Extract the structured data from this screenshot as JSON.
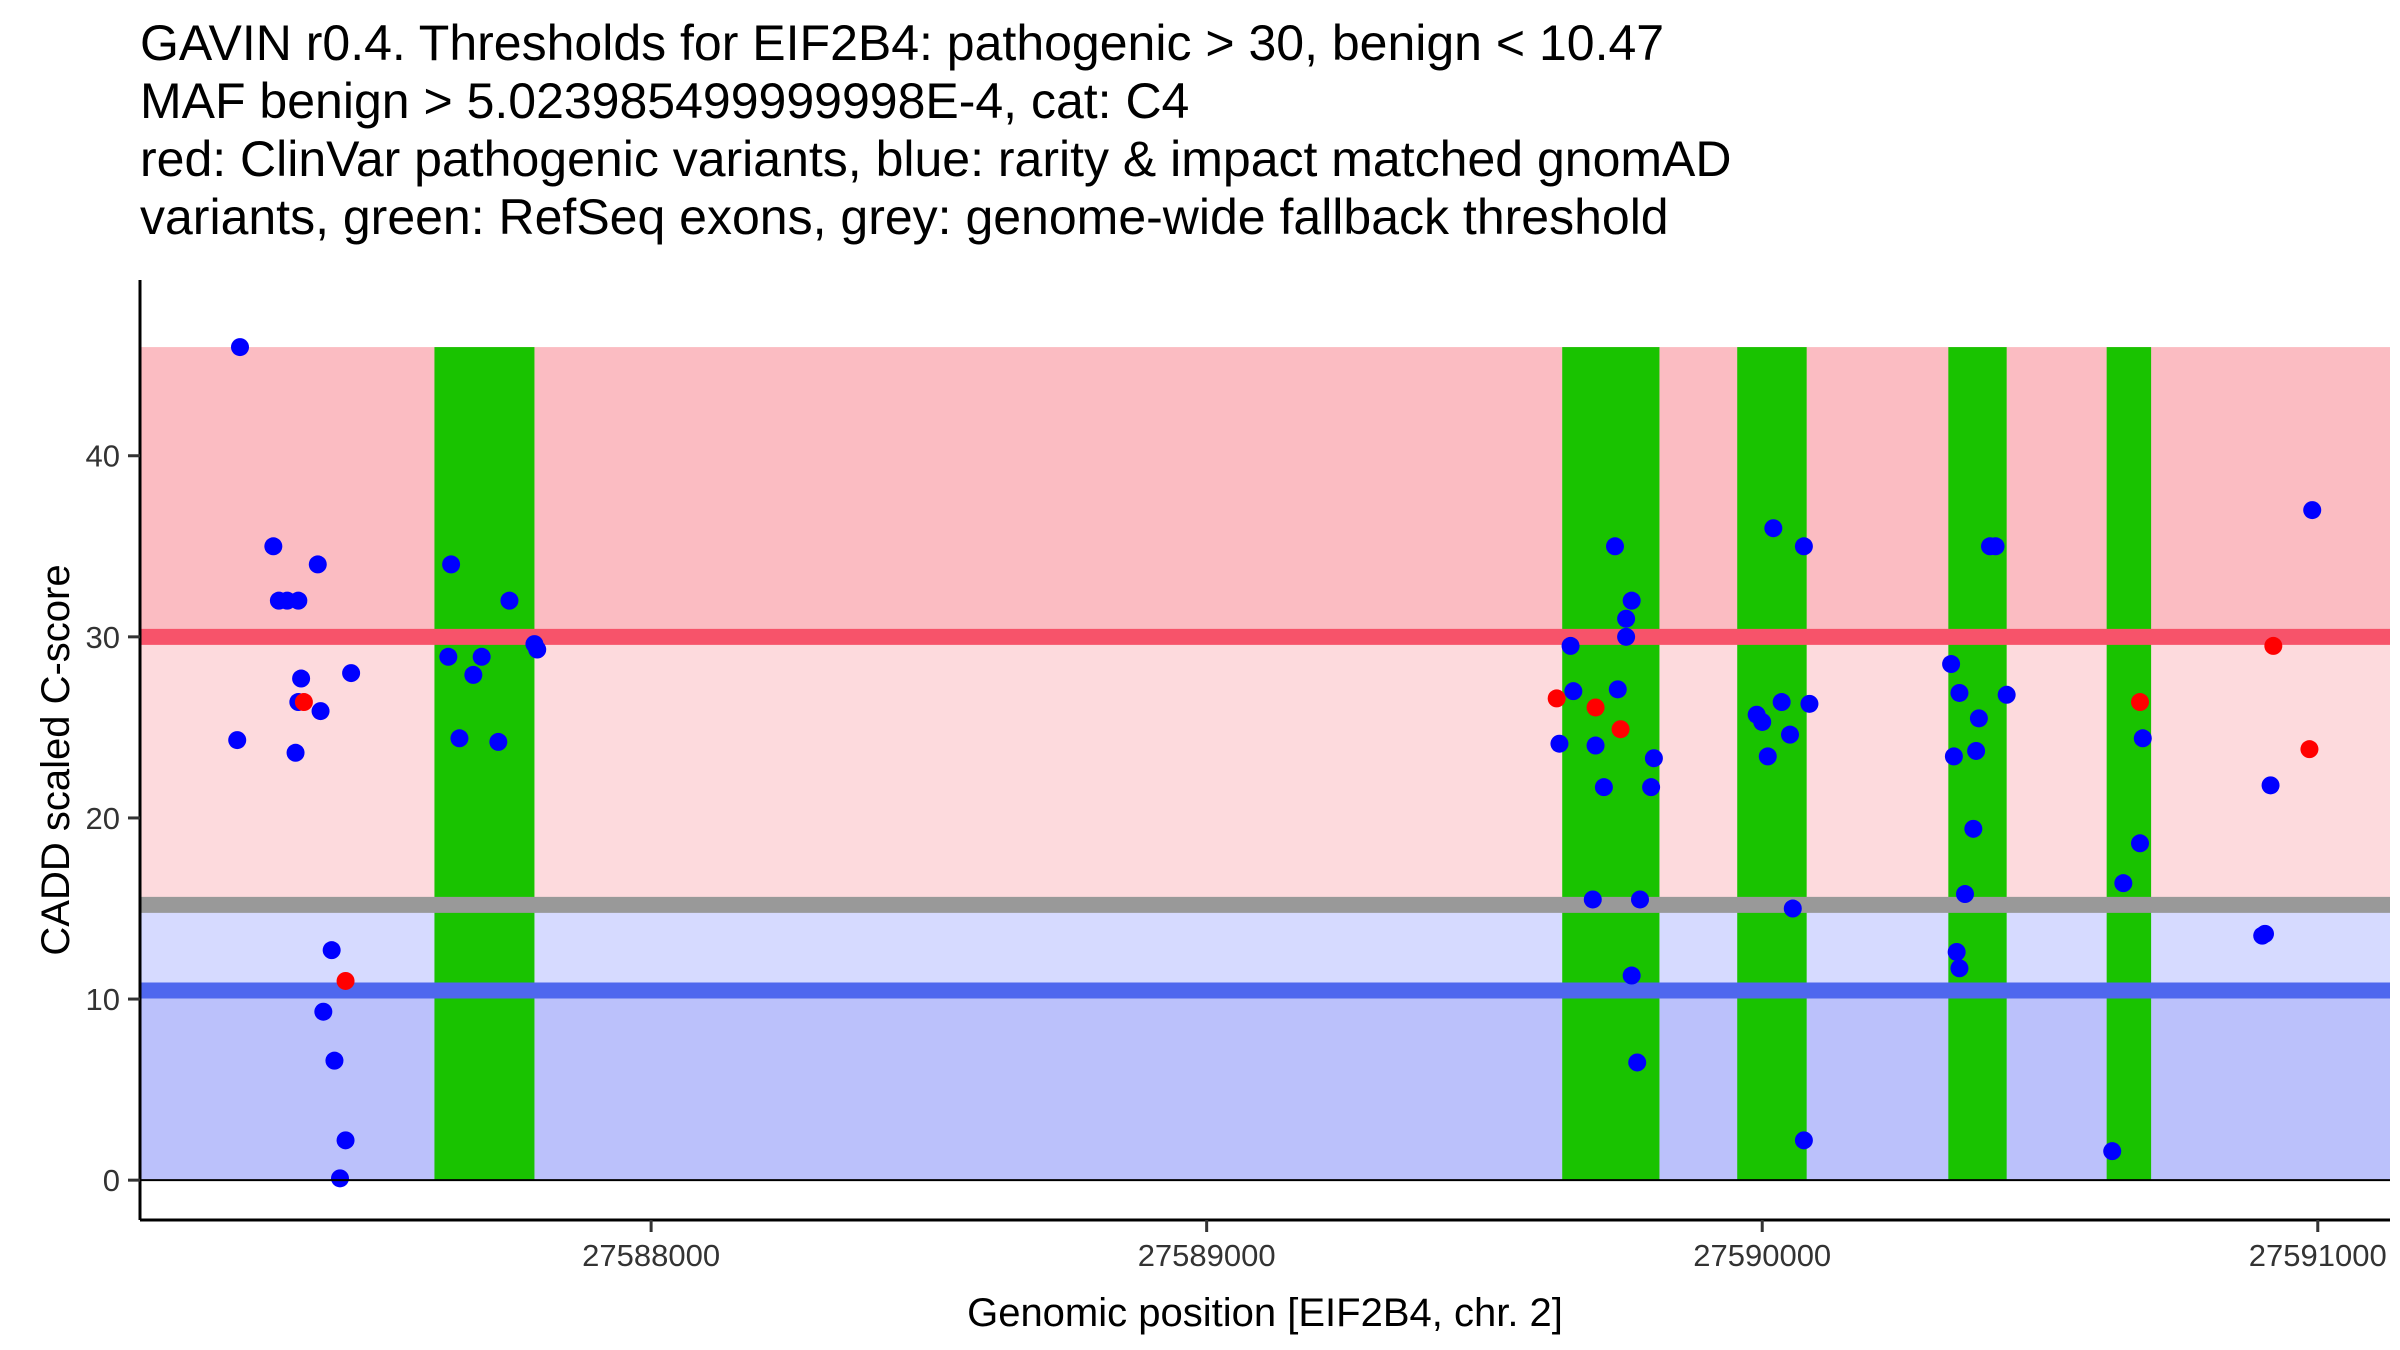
{
  "chart_data": {
    "type": "scatter",
    "title_lines": [
      "GAVIN r0.4. Thresholds for EIF2B4: pathogenic > 30, benign < 10.47",
      "MAF benign > 5.023985499999998E-4, cat: C4",
      "red: ClinVar pathogenic variants, blue: rarity & impact matched gnomAD",
      "variants, green: RefSeq exons, grey: genome-wide fallback threshold"
    ],
    "xlabel": "Genomic position [EIF2B4, chr. 2]",
    "ylabel": "CADD scaled C-score",
    "xlim": [
      27587080,
      27591130
    ],
    "ylim": [
      -2.2,
      48.6
    ],
    "x_ticks": [
      27588000,
      27589000,
      27590000,
      27591000
    ],
    "y_ticks": [
      0,
      10,
      20,
      30,
      40
    ],
    "grid": false,
    "colors": {
      "pathogenic_band": "#fbbcc2",
      "pathogenic_light_band": "#fddadd",
      "benign_light_band": "#d6daff",
      "benign_band": "#bbc1fb",
      "pathogenic_line": "#f7536a",
      "fallback_line": "#999999",
      "benign_line": "#4f67ee",
      "exon": "#19c300",
      "gnomad_point": "#0000ff",
      "clinvar_point": "#ff0000"
    },
    "bands": [
      {
        "name": "pathogenic",
        "ymin": 30,
        "ymax": 46
      },
      {
        "name": "pathogenic-light",
        "ymin": 15.2,
        "ymax": 30
      },
      {
        "name": "benign-light",
        "ymin": 10.47,
        "ymax": 15.2
      },
      {
        "name": "benign",
        "ymin": 0,
        "ymax": 10.47
      }
    ],
    "thresholds": {
      "pathogenic": 30,
      "fallback": 15.2,
      "benign": 10.47
    },
    "exons": [
      {
        "start": 27587610,
        "end": 27587790
      },
      {
        "start": 27589640,
        "end": 27589815
      },
      {
        "start": 27589955,
        "end": 27590080
      },
      {
        "start": 27590335,
        "end": 27590440
      },
      {
        "start": 27590620,
        "end": 27590700
      }
    ],
    "series": [
      {
        "name": "ClinVar pathogenic variants",
        "points": [
          [
            27587375,
            26.4
          ],
          [
            27587450,
            11.0
          ],
          [
            27589630,
            26.6
          ],
          [
            27589700,
            26.1
          ],
          [
            27589745,
            24.9
          ],
          [
            27590680,
            26.4
          ],
          [
            27590920,
            29.5
          ],
          [
            27590985,
            23.8
          ]
        ]
      },
      {
        "name": "rarity & impact matched gnomAD variants",
        "points": [
          [
            27587260,
            46.0
          ],
          [
            27587255,
            24.3
          ],
          [
            27587320,
            35.0
          ],
          [
            27587330,
            32.0
          ],
          [
            27587345,
            32.0
          ],
          [
            27587365,
            32.0
          ],
          [
            27587365,
            26.4
          ],
          [
            27587360,
            23.6
          ],
          [
            27587370,
            27.7
          ],
          [
            27587400,
            34.0
          ],
          [
            27587405,
            25.9
          ],
          [
            27587410,
            9.3
          ],
          [
            27587425,
            12.7
          ],
          [
            27587430,
            6.6
          ],
          [
            27587440,
            0.1
          ],
          [
            27587450,
            2.2
          ],
          [
            27587460,
            28.0
          ],
          [
            27587640,
            34.0
          ],
          [
            27587635,
            28.9
          ],
          [
            27587655,
            24.4
          ],
          [
            27587680,
            27.9
          ],
          [
            27587695,
            28.9
          ],
          [
            27587725,
            24.2
          ],
          [
            27587745,
            32.0
          ],
          [
            27587790,
            29.6
          ],
          [
            27587795,
            29.3
          ],
          [
            27589635,
            24.1
          ],
          [
            27589655,
            29.5
          ],
          [
            27589660,
            27.0
          ],
          [
            27589695,
            15.5
          ],
          [
            27589700,
            24.0
          ],
          [
            27589715,
            21.7
          ],
          [
            27589735,
            35.0
          ],
          [
            27589740,
            27.1
          ],
          [
            27589755,
            31.0
          ],
          [
            27589755,
            30.0
          ],
          [
            27589765,
            32.0
          ],
          [
            27589765,
            11.3
          ],
          [
            27589775,
            6.5
          ],
          [
            27589780,
            15.5
          ],
          [
            27589800,
            21.7
          ],
          [
            27589805,
            23.3
          ],
          [
            27589990,
            25.7
          ],
          [
            27590000,
            25.3
          ],
          [
            27590010,
            23.4
          ],
          [
            27590020,
            36.0
          ],
          [
            27590035,
            26.4
          ],
          [
            27590050,
            24.6
          ],
          [
            27590055,
            15.0
          ],
          [
            27590075,
            35.0
          ],
          [
            27590075,
            2.2
          ],
          [
            27590085,
            26.3
          ],
          [
            27590340,
            28.5
          ],
          [
            27590345,
            23.4
          ],
          [
            27590350,
            12.6
          ],
          [
            27590355,
            26.9
          ],
          [
            27590355,
            11.7
          ],
          [
            27590365,
            15.8
          ],
          [
            27590380,
            19.4
          ],
          [
            27590385,
            23.7
          ],
          [
            27590390,
            25.5
          ],
          [
            27590410,
            35.0
          ],
          [
            27590420,
            35.0
          ],
          [
            27590440,
            26.8
          ],
          [
            27590630,
            1.6
          ],
          [
            27590650,
            16.4
          ],
          [
            27590680,
            18.6
          ],
          [
            27590685,
            24.4
          ],
          [
            27590900,
            13.5
          ],
          [
            27590905,
            13.6
          ],
          [
            27590915,
            21.8
          ],
          [
            27590990,
            37.0
          ]
        ]
      }
    ]
  }
}
